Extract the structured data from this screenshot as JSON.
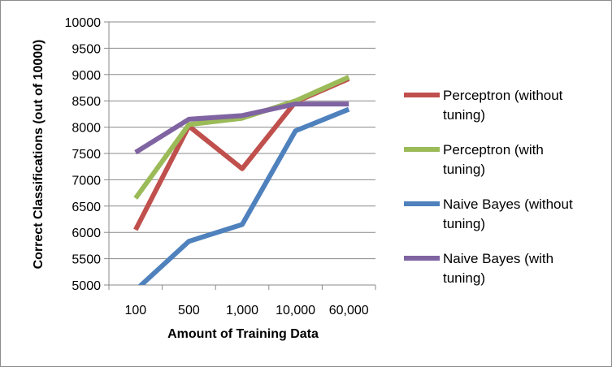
{
  "chart_data": {
    "type": "line",
    "title": "",
    "xlabel": "Amount of Training Data",
    "ylabel": "Correct Classifications (out of 10000)",
    "categories": [
      "100",
      "500",
      "1,000",
      "10,000",
      "60,000"
    ],
    "ylim": [
      5000,
      10000
    ],
    "yticks": [
      5000,
      5500,
      6000,
      6500,
      7000,
      7500,
      8000,
      8500,
      9000,
      9500,
      10000
    ],
    "grid": "horizontal",
    "legend_position": "right",
    "series": [
      {
        "name": "Perceptron (without tuning)",
        "legend_lines": [
          "Perceptron (without",
          "tuning)"
        ],
        "color": "#c0504d",
        "values": [
          6050,
          8020,
          7210,
          8480,
          8920
        ]
      },
      {
        "name": "Perceptron (with tuning)",
        "legend_lines": [
          "Perceptron (with",
          "tuning)"
        ],
        "color": "#9bbb59",
        "values": [
          6650,
          8050,
          8170,
          8500,
          8950
        ]
      },
      {
        "name": "Naive Bayes (without tuning)",
        "legend_lines": [
          "Naive Bayes (without",
          "tuning)"
        ],
        "color": "#4f81bd",
        "values": [
          4900,
          5830,
          6150,
          7930,
          8340
        ]
      },
      {
        "name": "Naive Bayes (with tuning)",
        "legend_lines": [
          "Naive Bayes (with",
          "tuning)"
        ],
        "color": "#8064a2",
        "values": [
          7520,
          8150,
          8220,
          8440,
          8440
        ]
      }
    ]
  }
}
